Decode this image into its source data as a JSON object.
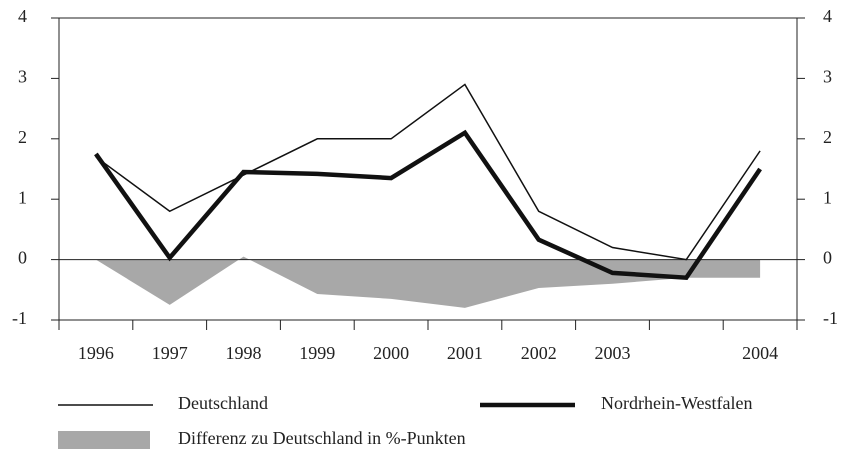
{
  "chart_data": {
    "type": "line",
    "categories": [
      "1996",
      "1997",
      "1998",
      "1999",
      "2000",
      "2001",
      "2002",
      "2003",
      null,
      "2004"
    ],
    "series": [
      {
        "name": "Differenz zu Deutschland in %-Punkten",
        "style": "area",
        "color": "#a8a8a8",
        "values": [
          0,
          -0.75,
          0.05,
          -0.57,
          -0.65,
          -0.8,
          -0.47,
          -0.4,
          -0.3,
          -0.3
        ]
      },
      {
        "name": "Deutschland",
        "style": "line",
        "color": "#111111",
        "line_width": 1.5,
        "values": [
          1.7,
          0.8,
          1.4,
          2.0,
          2.0,
          2.9,
          0.8,
          0.2,
          0.0,
          1.8
        ]
      },
      {
        "name": "Nordrhein-Westfalen",
        "style": "line",
        "color": "#111111",
        "line_width": 4.5,
        "values": [
          1.75,
          0.03,
          1.45,
          1.42,
          1.35,
          2.1,
          0.33,
          -0.22,
          -0.3,
          1.5
        ]
      }
    ],
    "ylim": [
      -1,
      4
    ],
    "yticks": [
      -1,
      0,
      1,
      2,
      3,
      4
    ],
    "zero_line": true
  }
}
